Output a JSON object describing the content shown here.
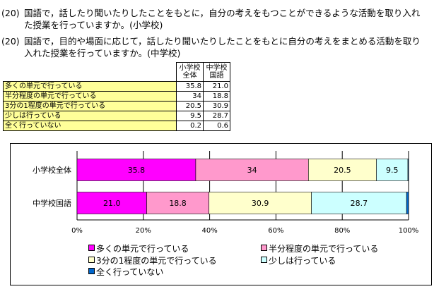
{
  "questions": [
    {
      "num": "(20)",
      "text": "国語で，話したり聞いたりしたことをもとに，自分の考えをもつことができるような活動を取り入れた授業を行っていますか。(小学校)"
    },
    {
      "num": "(20)",
      "text": "国語で，目的や場面に応じて，話したり聞いたりしたことをもとに自分の考えをまとめる活動を取り入れた授業を行っていますか。(中学校)"
    }
  ],
  "table": {
    "headers": [
      "小学校\n全体",
      "中学校\n国語"
    ],
    "rows": [
      {
        "label": "多くの単元で行っている",
        "values": [
          "35.8",
          "21.0"
        ]
      },
      {
        "label": "半分程度の単元で行っている",
        "values": [
          "34",
          "18.8"
        ]
      },
      {
        "label": "3分の1程度の単元で行っている",
        "values": [
          "20.5",
          "30.9"
        ]
      },
      {
        "label": "少しは行っている",
        "values": [
          "9.5",
          "28.7"
        ]
      },
      {
        "label": "全く行っていない",
        "values": [
          "0.2",
          "0.6"
        ]
      }
    ]
  },
  "chart_data": {
    "type": "bar",
    "orientation": "horizontal-stacked-100",
    "categories": [
      "小学校全体",
      "中学校国語"
    ],
    "series": [
      {
        "name": "多くの単元で行っている",
        "color": "#ff00ff",
        "values": [
          35.8,
          21.0
        ],
        "labels": [
          "35.8",
          "21.0"
        ]
      },
      {
        "name": "半分程度の単元で行っている",
        "color": "#ff99cc",
        "values": [
          34,
          18.8
        ],
        "labels": [
          "34",
          "18.8"
        ]
      },
      {
        "name": "3分の1程度の単元で行っている",
        "color": "#ffffcc",
        "values": [
          20.5,
          30.9
        ],
        "labels": [
          "20.5",
          "30.9"
        ]
      },
      {
        "name": "少しは行っている",
        "color": "#ccffff",
        "values": [
          9.5,
          28.7
        ],
        "labels": [
          "9.5",
          "28.7"
        ]
      },
      {
        "name": "全く行っていない",
        "color": "#0066cc",
        "values": [
          0.2,
          0.6
        ],
        "labels": [
          "",
          ""
        ]
      }
    ],
    "xlim": [
      0,
      100
    ],
    "xticks": [
      "0%",
      "20%",
      "40%",
      "60%",
      "80%",
      "100%"
    ],
    "grid": true,
    "legend": "bottom"
  }
}
